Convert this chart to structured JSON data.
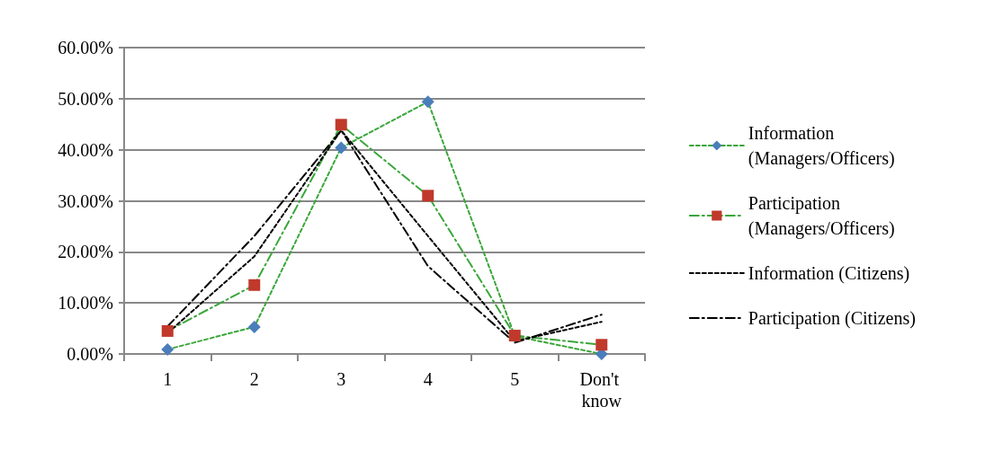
{
  "chart_data": {
    "type": "line",
    "categories": [
      "1",
      "2",
      "3",
      "4",
      "5",
      "Don't know"
    ],
    "ylim": [
      0,
      60
    ],
    "yticks": [
      {
        "value": 0,
        "label": "0.00%"
      },
      {
        "value": 10,
        "label": "10.00%"
      },
      {
        "value": 20,
        "label": "20.00%"
      },
      {
        "value": 30,
        "label": "30.00%"
      },
      {
        "value": 40,
        "label": "40.00%"
      },
      {
        "value": 50,
        "label": "50.00%"
      },
      {
        "value": 60,
        "label": "60.00%"
      }
    ],
    "grid": "y",
    "legend": "right",
    "series": [
      {
        "name": "Information (Managers/Officers)",
        "color": "#3aa63a",
        "marker": "diamond",
        "colors": [
          "#4a7ebb",
          "#4a7ebb",
          "#4a7ebb",
          "#4a7ebb",
          "#4a7ebb",
          "#4a7ebb"
        ],
        "line_style": "dashed",
        "values": [
          0.9,
          5.3,
          40.4,
          49.4,
          3.5,
          0
        ]
      },
      {
        "name": "Participation (Managers/Officers)",
        "color": "#3aa63a",
        "marker": "square",
        "colors": [
          "#c0392b",
          "#c0392b",
          "#c0392b",
          "#c0392b",
          "#c0392b",
          "#c0392b"
        ],
        "line_style": "dashdot",
        "values": [
          4.5,
          13.5,
          44.9,
          31.0,
          3.6,
          1.8
        ]
      },
      {
        "name": "Information (Citizens)",
        "color": "#000000",
        "marker": "none",
        "line_style": "dashed",
        "values": [
          4.1,
          19.1,
          43.8,
          23.1,
          2.5,
          6.3
        ]
      },
      {
        "name": "Participation (Citizens)",
        "color": "#000000",
        "marker": "none",
        "line_style": "dashdot",
        "values": [
          5.4,
          23.1,
          43.8,
          17.2,
          2.2,
          7.7
        ]
      }
    ]
  }
}
